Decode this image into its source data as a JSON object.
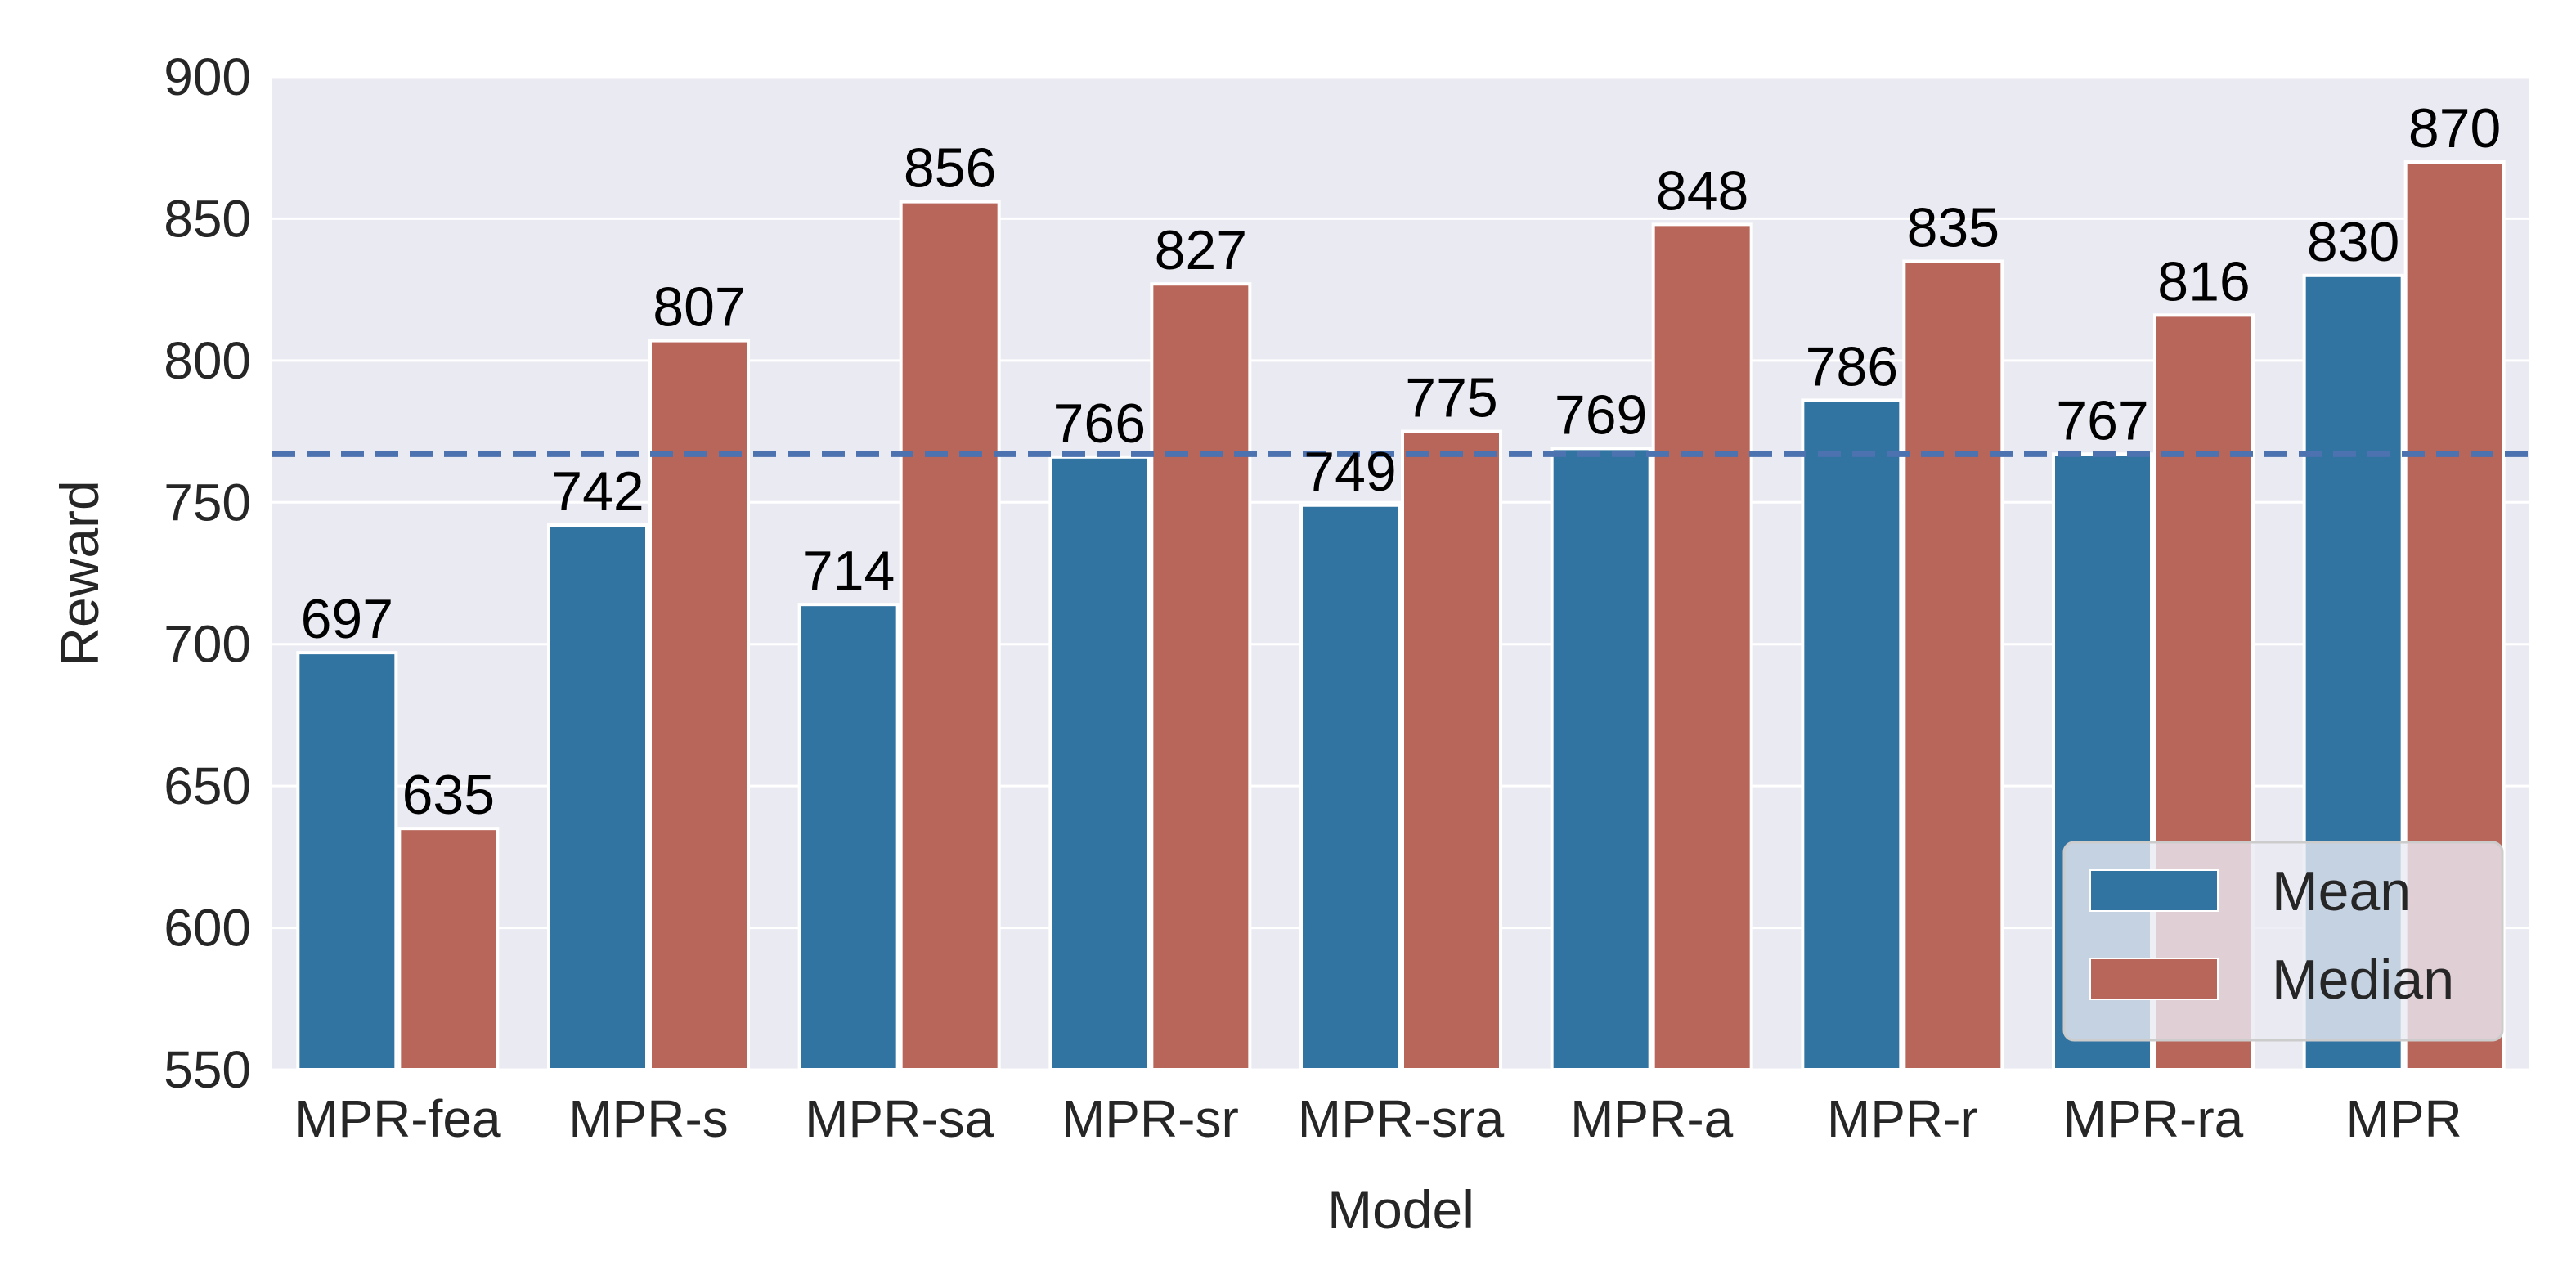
{
  "chart_data": {
    "type": "bar",
    "xlabel": "Model",
    "ylabel": "Reward",
    "ylim": [
      550,
      900
    ],
    "yticks": [
      550,
      600,
      650,
      700,
      750,
      800,
      850,
      900
    ],
    "grid": true,
    "categories": [
      "MPR-fea",
      "MPR-s",
      "MPR-sa",
      "MPR-sr",
      "MPR-sra",
      "MPR-a",
      "MPR-r",
      "MPR-ra",
      "MPR"
    ],
    "series": [
      {
        "name": "Mean",
        "color": "#3274a1",
        "values": [
          697,
          742,
          714,
          766,
          749,
          769,
          786,
          767,
          830
        ]
      },
      {
        "name": "Median",
        "color": "#b9665a",
        "values": [
          635,
          807,
          856,
          827,
          775,
          848,
          835,
          816,
          870
        ]
      }
    ],
    "reference_line": {
      "value": 767,
      "style": "dashed",
      "color": "#4c72b0"
    },
    "legend": {
      "position": "lower-right",
      "entries": [
        "Mean",
        "Median"
      ]
    },
    "background_color": "#eaeaf2"
  }
}
